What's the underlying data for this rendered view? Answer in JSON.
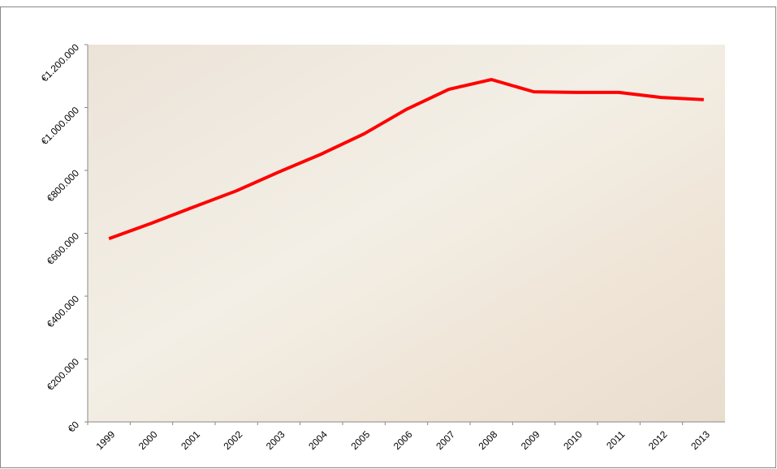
{
  "chart_data": {
    "type": "line",
    "categories": [
      "1999",
      "2000",
      "2001",
      "2002",
      "2003",
      "2004",
      "2005",
      "2006",
      "2007",
      "2008",
      "2009",
      "2010",
      "2011",
      "2012",
      "2013"
    ],
    "series": [
      {
        "color": "#ff0000",
        "values": [
          583000,
          632000,
          684000,
          735000,
          795000,
          852000,
          916000,
          994000,
          1058000,
          1089000,
          1050000,
          1048000,
          1048000,
          1032000,
          1025000
        ]
      }
    ],
    "ylim": [
      0,
      1200000
    ],
    "yticks": [
      {
        "value": 0,
        "label": "€0"
      },
      {
        "value": 200000,
        "label": "€200.000"
      },
      {
        "value": 400000,
        "label": "€400.000"
      },
      {
        "value": 600000,
        "label": "€600.000"
      },
      {
        "value": 800000,
        "label": "€800.000"
      },
      {
        "value": 1000000,
        "label": "€1.000.000"
      },
      {
        "value": 1200000,
        "label": "€1.200.000"
      }
    ]
  }
}
